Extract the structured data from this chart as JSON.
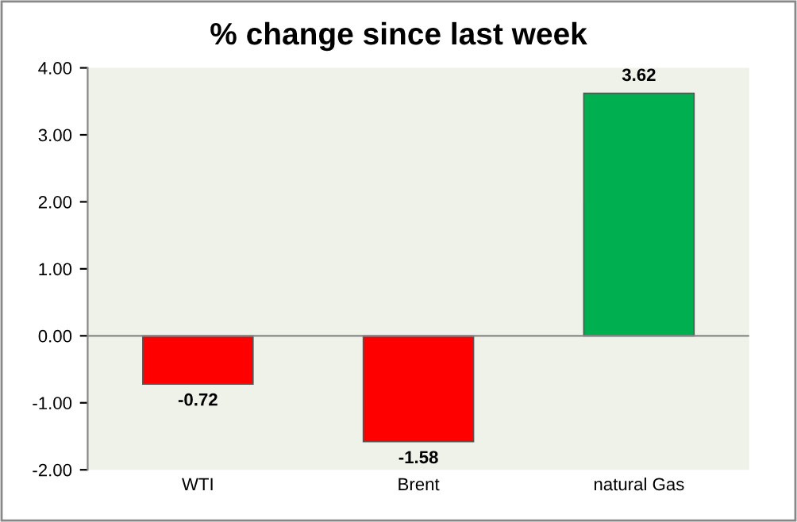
{
  "chart_data": {
    "type": "bar",
    "title": "% change since last week",
    "categories": [
      "WTI",
      "Brent",
      "natural Gas"
    ],
    "values": [
      -0.72,
      -1.58,
      3.62
    ],
    "colors": [
      "#ff0000",
      "#ff0000",
      "#00b050"
    ],
    "ylim": [
      -2,
      4
    ],
    "yticks": [
      {
        "value": -2,
        "label": "-2.00"
      },
      {
        "value": -1,
        "label": "-1.00"
      },
      {
        "value": 0,
        "label": "0.00"
      },
      {
        "value": 1,
        "label": "1.00"
      },
      {
        "value": 2,
        "label": "2.00"
      },
      {
        "value": 3,
        "label": "3.00"
      },
      {
        "value": 4,
        "label": "4.00"
      }
    ],
    "data_labels": true
  }
}
